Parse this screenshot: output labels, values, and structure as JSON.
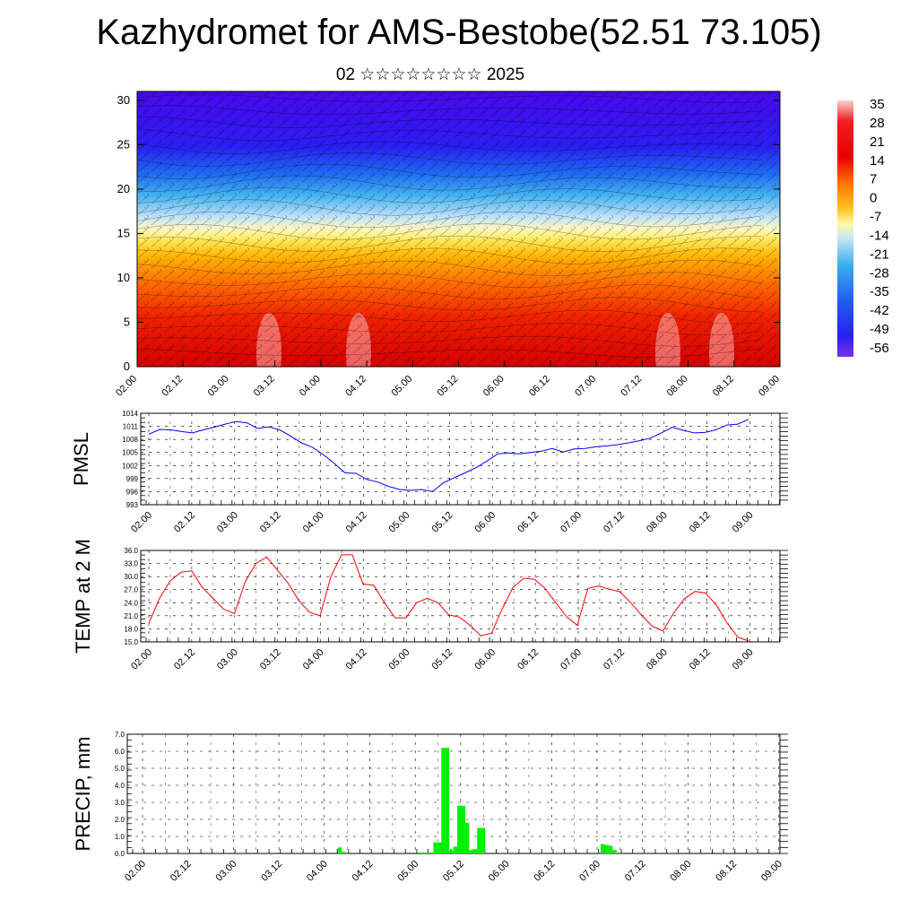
{
  "title": "Kazhydromet for AMS-Bestobe(52.51 73.105)",
  "subtitle": "02 ☆☆☆☆☆☆☆☆ 2025",
  "chart_data": [
    {
      "type": "heatmap",
      "description_kind": "cross-section",
      "time_labels": [
        "02.00",
        "02.12",
        "03.00",
        "03.12",
        "04.00",
        "04.12",
        "05.00",
        "05.12",
        "06.00",
        "06.12",
        "07.00",
        "07.12",
        "08.00",
        "08.12",
        "09.00"
      ],
      "ylim": [
        0,
        31
      ],
      "yticks": [
        0,
        5,
        10,
        15,
        20,
        25,
        30
      ],
      "colorbar_labels": [
        35,
        28,
        21,
        14,
        7,
        0,
        -7,
        -14,
        -21,
        -28,
        -35,
        -42,
        -49,
        -56
      ],
      "colorbar_range": [
        -60,
        38
      ],
      "wind_barbs": true
    },
    {
      "type": "line",
      "ylabel": "PMSL",
      "ylim": [
        993,
        1014
      ],
      "yticks": [
        993,
        996,
        999,
        1002,
        1005,
        1008,
        1011,
        1014
      ],
      "x_labels": [
        "02.00",
        "02.12",
        "03.00",
        "03.12",
        "04.00",
        "04.12",
        "05.00",
        "05.12",
        "06.00",
        "06.12",
        "07.00",
        "07.12",
        "08.00",
        "08.12",
        "09.00"
      ],
      "color": "#0000ff",
      "values": [
        1009.2,
        1010.3,
        1010.2,
        1009.8,
        1009.5,
        1010.2,
        1010.8,
        1011.5,
        1012.1,
        1011.8,
        1010.5,
        1010.9,
        1010.2,
        1008.8,
        1007.2,
        1006.2,
        1004.5,
        1002.5,
        1000.3,
        1000.2,
        998.8,
        998.2,
        997.2,
        996.5,
        996.3,
        996.5,
        996.0,
        998.0,
        999.2,
        1000.3,
        1001.5,
        1003.0,
        1004.7,
        1004.9,
        1004.7,
        1005.0,
        1005.3,
        1005.9,
        1005.1,
        1005.8,
        1005.9,
        1006.3,
        1006.5,
        1006.8,
        1007.2,
        1007.7,
        1008.3,
        1009.5,
        1010.8,
        1010.1,
        1009.5,
        1009.6,
        1010.2,
        1011.3,
        1011.5,
        1012.6
      ]
    },
    {
      "type": "line",
      "ylabel": "TEMP at 2 M",
      "ylim": [
        15.0,
        36.0
      ],
      "yticks": [
        15.0,
        18.0,
        21.0,
        24.0,
        27.0,
        30.0,
        33.0,
        36.0
      ],
      "x_labels": [
        "02.00",
        "02.12",
        "03.00",
        "03.12",
        "04.00",
        "04.12",
        "05.00",
        "05.12",
        "06.00",
        "06.12",
        "07.00",
        "07.12",
        "08.00",
        "08.12",
        "09.00"
      ],
      "color": "#ff0000",
      "values": [
        19.2,
        25.0,
        29.0,
        31.0,
        31.3,
        27.5,
        25.0,
        22.5,
        21.5,
        28.8,
        33.0,
        34.5,
        31.5,
        28.5,
        24.5,
        21.8,
        21.0,
        30.0,
        35.0,
        35.0,
        28.3,
        28.0,
        24.0,
        20.5,
        20.5,
        24.0,
        25.0,
        24.0,
        21.2,
        20.7,
        18.8,
        16.4,
        17.0,
        22.6,
        27.5,
        29.6,
        29.4,
        27.3,
        24.0,
        20.8,
        18.8,
        27.3,
        27.8,
        27.1,
        26.5,
        24.0,
        21.2,
        18.6,
        17.5,
        21.6,
        24.9,
        26.6,
        26.2,
        23.4,
        19.3,
        16.1,
        15.2
      ]
    },
    {
      "type": "bar",
      "ylabel": "PRECIP, mm",
      "ylim": [
        0.0,
        7.0
      ],
      "yticks": [
        0.0,
        1.0,
        2.0,
        3.0,
        4.0,
        5.0,
        6.0,
        7.0
      ],
      "x_labels": [
        "02.00",
        "02.12",
        "03.00",
        "03.12",
        "04.00",
        "04.12",
        "05.00",
        "05.12",
        "06.00",
        "06.12",
        "07.00",
        "07.12",
        "08.00",
        "08.12",
        "09.00"
      ],
      "color": "#00ee00",
      "values": [
        0,
        0,
        0,
        0,
        0,
        0,
        0,
        0,
        0,
        0,
        0,
        0,
        0,
        0,
        0,
        0,
        0,
        0,
        0,
        0,
        0,
        0,
        0,
        0,
        0,
        0,
        0,
        0,
        0,
        0,
        0,
        0,
        0,
        0,
        0,
        0,
        0,
        0,
        0,
        0,
        0,
        0,
        0,
        0,
        0,
        0,
        0,
        0,
        0,
        0.35,
        0.1,
        0,
        0,
        0,
        0,
        0,
        0,
        0,
        0,
        0,
        0,
        0,
        0,
        0,
        0,
        0,
        0,
        0,
        0,
        0.05,
        0.05,
        0.05,
        0.05,
        0.65,
        0.65,
        6.2,
        6.2,
        0.2,
        0.4,
        2.8,
        2.8,
        1.8,
        0.2,
        0.25,
        1.5,
        1.5,
        0,
        0,
        0,
        0,
        0,
        0,
        0,
        0,
        0,
        0,
        0,
        0,
        0,
        0,
        0,
        0,
        0,
        0,
        0,
        0,
        0,
        0,
        0,
        0,
        0,
        0,
        0,
        0,
        0,
        0.55,
        0.5,
        0.45,
        0.2,
        0,
        0,
        0,
        0,
        0,
        0,
        0,
        0,
        0,
        0,
        0,
        0,
        0,
        0,
        0,
        0,
        0,
        0,
        0,
        0,
        0,
        0,
        0,
        0,
        0,
        0,
        0,
        0,
        0,
        0,
        0,
        0,
        0,
        0,
        0,
        0,
        0,
        0,
        0,
        0,
        0
      ]
    }
  ]
}
